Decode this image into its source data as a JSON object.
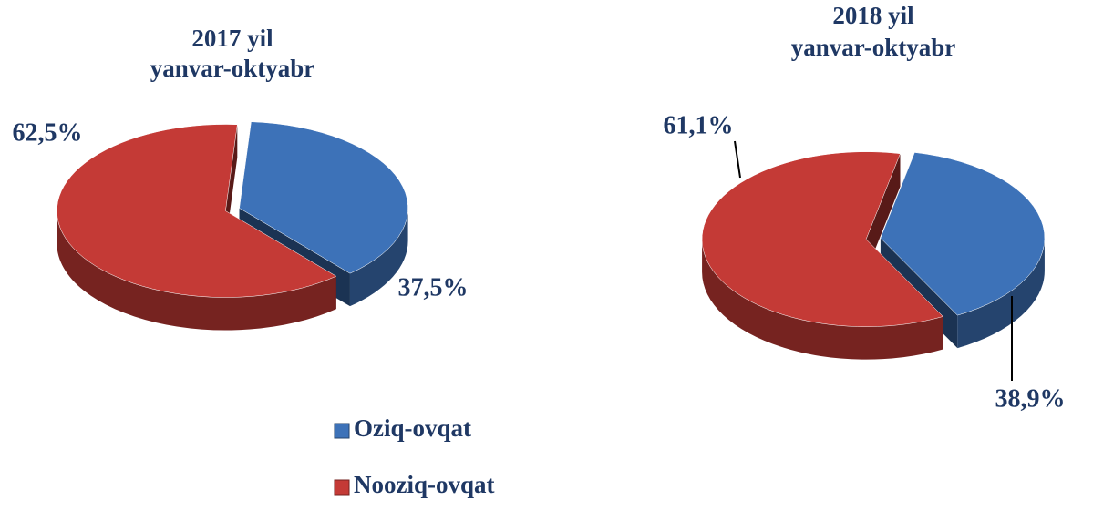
{
  "chart_data": [
    {
      "type": "pie",
      "title": [
        "2017 yil",
        "yanvar-oktyabr"
      ],
      "categories": [
        "Oziq-ovqat",
        "Nooziq-ovqat"
      ],
      "values": [
        37.5,
        62.5
      ],
      "value_labels": [
        "37,5%",
        "62,5%"
      ],
      "colors": [
        "#3d72b8",
        "#c43a36"
      ]
    },
    {
      "type": "pie",
      "title": [
        "2018 yil",
        "yanvar-oktyabr"
      ],
      "categories": [
        "Oziq-ovqat",
        "Nooziq-ovqat"
      ],
      "values": [
        38.9,
        61.1
      ],
      "value_labels": [
        "38,9%",
        "61,1%"
      ],
      "colors": [
        "#3d72b8",
        "#c43a36"
      ]
    }
  ]
}
